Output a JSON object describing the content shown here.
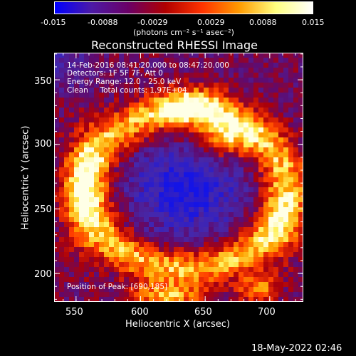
{
  "colorbar": {
    "ticks": [
      "-0.015",
      "-0.0088",
      "-0.0029",
      "0.0029",
      "0.0088",
      "0.015"
    ],
    "units_line": "(photons cm⁻² s⁻¹ asec⁻²)",
    "colors": [
      "#0000ff",
      "#4c1aa6",
      "#6b0066",
      "#b00000",
      "#ff3300",
      "#ff9a00",
      "#ffff80",
      "#ffffff"
    ]
  },
  "plot": {
    "title": "Reconstructed RHESSI Image",
    "xlabel": "Heliocentric X (arcsec)",
    "ylabel": "Heliocentric Y (arcsec)",
    "xticks": [
      "550",
      "600",
      "650",
      "700"
    ],
    "yticks": [
      "350",
      "300",
      "250",
      "200"
    ],
    "overlay_lines": [
      "14-Feb-2016 08:41:20.000 to 08:47:20.000",
      "Detectors: 1F 5F 7F, Att 0",
      "Energy Range: 12.0 - 25.0 keV",
      "Clean     Total counts: 1.97E+04"
    ],
    "peak_label": "Position of Peak: [690,185]"
  },
  "timestamp": "18-May-2022 02:46"
}
